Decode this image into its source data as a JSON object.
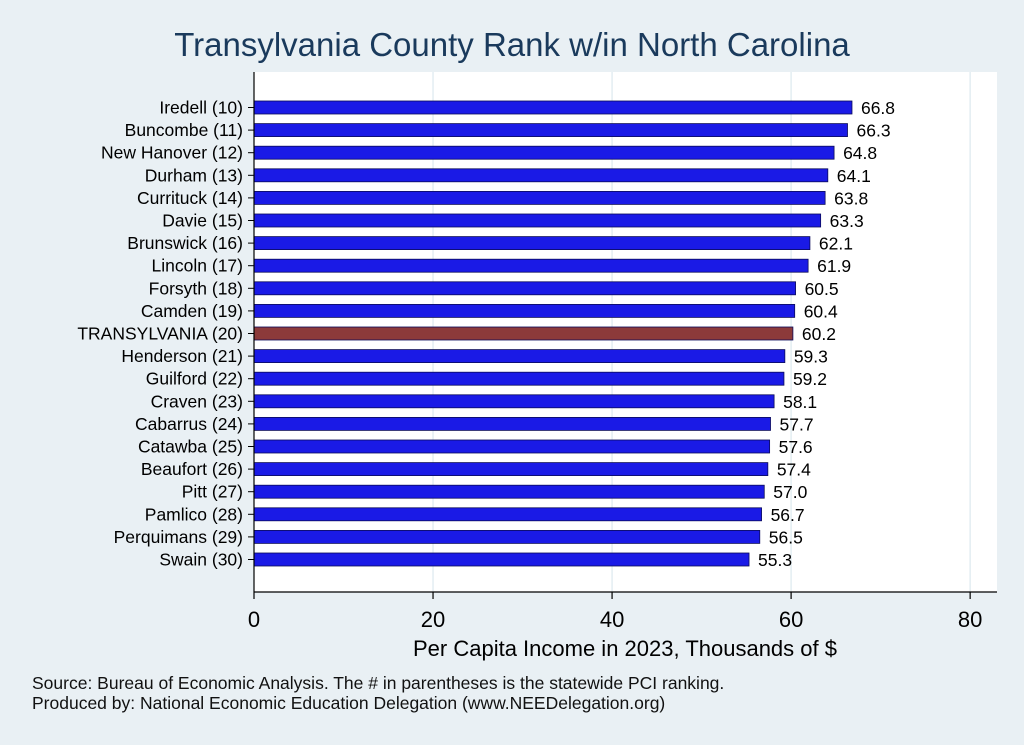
{
  "chart_data": {
    "type": "bar",
    "orientation": "horizontal",
    "title": "Transylvania County Rank w/in North Carolina",
    "xlabel": "Per Capita Income in 2023, Thousands of $",
    "ylabel": "",
    "xlim": [
      0,
      83
    ],
    "xticks": [
      "0",
      "20",
      "40",
      "60",
      "80"
    ],
    "xtick_values": [
      0,
      20,
      40,
      60,
      80
    ],
    "grid": true,
    "categories": [
      "Iredell (10)",
      "Buncombe (11)",
      "New Hanover (12)",
      "Durham (13)",
      "Currituck (14)",
      "Davie (15)",
      "Brunswick (16)",
      "Lincoln (17)",
      "Forsyth (18)",
      "Camden (19)",
      "TRANSYLVANIA (20)",
      "Henderson (21)",
      "Guilford (22)",
      "Craven (23)",
      "Cabarrus (24)",
      "Catawba (25)",
      "Beaufort (26)",
      "Pitt (27)",
      "Pamlico (28)",
      "Perquimans (29)",
      "Swain (30)"
    ],
    "values": [
      66.8,
      66.3,
      64.8,
      64.1,
      63.8,
      63.3,
      62.1,
      61.9,
      60.5,
      60.4,
      60.2,
      59.3,
      59.2,
      58.1,
      57.7,
      57.6,
      57.4,
      57.0,
      56.7,
      56.5,
      55.3
    ],
    "value_labels": [
      "66.8",
      "66.3",
      "64.8",
      "64.1",
      "63.8",
      "63.3",
      "62.1",
      "61.9",
      "60.5",
      "60.4",
      "60.2",
      "59.3",
      "59.2",
      "58.1",
      "57.7",
      "57.6",
      "57.4",
      "57.0",
      "56.7",
      "56.5",
      "55.3"
    ],
    "highlight_category": "TRANSYLVANIA (20)"
  },
  "colors": {
    "bar": "#1a1ae6",
    "bar_highlight": "#8c3a3a",
    "background": "#e9f0f4",
    "plot_background": "#ffffff",
    "grid": "#e3edf2",
    "title": "#1a3a5c"
  },
  "notes": {
    "source": "Source: Bureau of Economic Analysis. The # in parentheses is the statewide PCI ranking.",
    "produced_by": "Produced by: National Economic Education Delegation (www.NEEDelegation.org)"
  }
}
